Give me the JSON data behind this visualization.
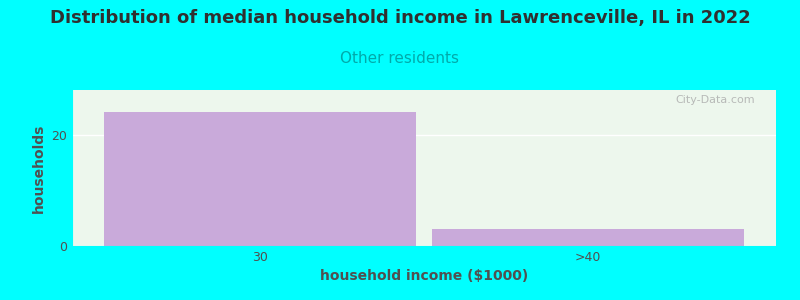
{
  "title": "Distribution of median household income in Lawrenceville, IL in 2022",
  "subtitle": "Other residents",
  "xlabel": "household income ($1000)",
  "ylabel": "households",
  "categories": [
    "30",
    ">40"
  ],
  "values": [
    24,
    3
  ],
  "ylim": [
    0,
    28
  ],
  "yticks": [
    0,
    20
  ],
  "bar_color": "#c9aada",
  "plot_bg_color": "#edf7ed",
  "fig_bg_color": "#00ffff",
  "title_color": "#303030",
  "subtitle_color": "#00aaaa",
  "axis_label_color": "#505050",
  "tick_color": "#505050",
  "watermark_text": "City-Data.com",
  "title_fontsize": 13,
  "subtitle_fontsize": 11,
  "label_fontsize": 10,
  "bar_width": 0.95,
  "gridline_color": "#ffffff",
  "gridline_alpha": 1.0
}
